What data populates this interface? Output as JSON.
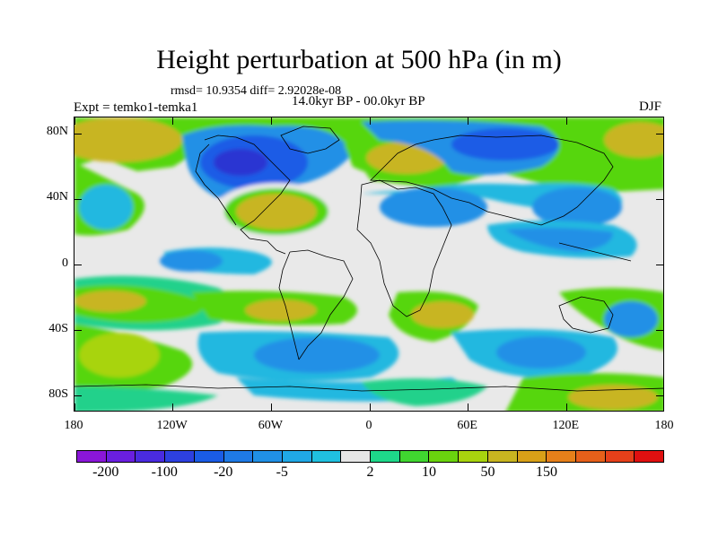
{
  "title": "Height perturbation at 500 hPa (in m)",
  "stats": "rmsd= 10.9354 diff= 2.92028e-08",
  "experiment": "Expt = temko1-temka1",
  "period": "14.0kyr BP - 00.0kyr BP",
  "season": "DJF",
  "map": {
    "projection": "cylindrical-equidistant",
    "lon_range": [
      -180,
      180
    ],
    "lat_range": [
      -90,
      90
    ],
    "lat_ticks": [
      {
        "value": 80,
        "label": "80N"
      },
      {
        "value": 40,
        "label": "40N"
      },
      {
        "value": 0,
        "label": "0"
      },
      {
        "value": -40,
        "label": "40S"
      },
      {
        "value": -80,
        "label": "80S"
      }
    ],
    "lon_ticks": [
      {
        "value": -180,
        "label": "180"
      },
      {
        "value": -120,
        "label": "120W"
      },
      {
        "value": -60,
        "label": "60W"
      },
      {
        "value": 0,
        "label": "0"
      },
      {
        "value": 60,
        "label": "60E"
      },
      {
        "value": 120,
        "label": "120E"
      },
      {
        "value": 180,
        "label": "180"
      }
    ],
    "colors": {
      "neutral": "#e9e9e9",
      "light_cyan": "#20b8e0",
      "mid_blue": "#2090e6",
      "blue": "#1a5ce6",
      "deep_blue": "#2b35d2",
      "green": "#22d18b",
      "lime": "#56d60c",
      "yellow_green": "#a8d40e",
      "mustard": "#c8b520",
      "orange": "#e6931c"
    }
  },
  "colorbar": {
    "colors": [
      "#8a16d8",
      "#6a1fe0",
      "#4a2be0",
      "#2d40e0",
      "#1a5ce6",
      "#1f7ae6",
      "#2090e6",
      "#20a8e6",
      "#20c0e0",
      "#e6e6e6",
      "#1ed88a",
      "#40d630",
      "#6ad40e",
      "#a8d40e",
      "#c8b520",
      "#d8a018",
      "#e6801a",
      "#e6601a",
      "#e6401a",
      "#e01010"
    ],
    "labels": [
      {
        "value": "-200",
        "index": 1
      },
      {
        "value": "-100",
        "index": 3
      },
      {
        "value": "-20",
        "index": 5
      },
      {
        "value": "-5",
        "index": 7
      },
      {
        "value": "2",
        "index": 10
      },
      {
        "value": "10",
        "index": 12
      },
      {
        "value": "50",
        "index": 14
      },
      {
        "value": "150",
        "index": 16
      }
    ]
  }
}
